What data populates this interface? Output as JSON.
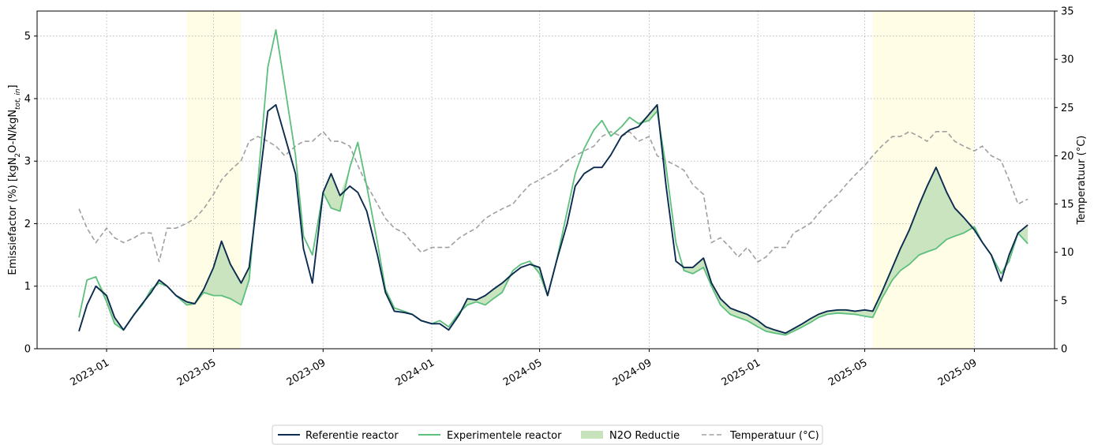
{
  "chart_data": {
    "type": "line",
    "ylabel_left_prefix": "Emissiefactor (%) [kgN",
    "ylabel_left_sub1": "2",
    "ylabel_left_mid": "O-N/kgN",
    "ylabel_left_sub2": "tot, in",
    "ylabel_left_suffix": "]",
    "ylabel_right": "Temperatuur (°C)",
    "ylim_left": [
      0,
      5.4
    ],
    "ylim_right": [
      0,
      35
    ],
    "yticks_left": [
      "0",
      "1",
      "2",
      "3",
      "4",
      "5"
    ],
    "yticks_right": [
      "0",
      "5",
      "10",
      "15",
      "20",
      "25",
      "30",
      "35"
    ],
    "xlim": [
      "2022-10-15",
      "2025-11-30"
    ],
    "xticks": [
      "2023-01",
      "2023-05",
      "2023-09",
      "2024-01",
      "2024-05",
      "2024-09",
      "2025-01",
      "2025-05",
      "2025-09"
    ],
    "grid": true,
    "legend_position": "bottom-center",
    "shaded_periods": [
      {
        "start": "2023-04-01",
        "end": "2023-06-01"
      },
      {
        "start": "2025-05-10",
        "end": "2025-09-01"
      }
    ],
    "colors": {
      "reference": "#0b2b4f",
      "experimental": "#5dbf7e",
      "reduction_fill": "#c6e3bc",
      "temperature": "#a0a0a0",
      "shade": "#fffde6"
    },
    "legend": [
      {
        "key": "reference",
        "label": "Referentie reactor"
      },
      {
        "key": "experimental",
        "label": "Experimentele reactor"
      },
      {
        "key": "reduction",
        "label": "N2O Reductie"
      },
      {
        "key": "temperature",
        "label": "Temperatuur (°C)"
      }
    ],
    "dates": [
      "2022-12-01",
      "2022-12-10",
      "2022-12-20",
      "2023-01-01",
      "2023-01-10",
      "2023-01-20",
      "2023-02-01",
      "2023-02-10",
      "2023-02-20",
      "2023-03-01",
      "2023-03-10",
      "2023-03-20",
      "2023-04-01",
      "2023-04-10",
      "2023-04-20",
      "2023-05-01",
      "2023-05-10",
      "2023-05-20",
      "2023-06-01",
      "2023-06-10",
      "2023-06-20",
      "2023-07-01",
      "2023-07-10",
      "2023-07-20",
      "2023-08-01",
      "2023-08-10",
      "2023-08-20",
      "2023-09-01",
      "2023-09-10",
      "2023-09-20",
      "2023-10-01",
      "2023-10-10",
      "2023-10-20",
      "2023-11-01",
      "2023-11-10",
      "2023-11-20",
      "2023-12-01",
      "2023-12-10",
      "2023-12-20",
      "2024-01-01",
      "2024-01-10",
      "2024-01-20",
      "2024-02-01",
      "2024-02-10",
      "2024-02-20",
      "2024-03-01",
      "2024-03-10",
      "2024-03-20",
      "2024-04-01",
      "2024-04-10",
      "2024-04-20",
      "2024-05-01",
      "2024-05-10",
      "2024-05-20",
      "2024-06-01",
      "2024-06-10",
      "2024-06-20",
      "2024-07-01",
      "2024-07-10",
      "2024-07-20",
      "2024-08-01",
      "2024-08-10",
      "2024-08-20",
      "2024-09-01",
      "2024-09-10",
      "2024-09-20",
      "2024-10-01",
      "2024-10-10",
      "2024-10-20",
      "2024-11-01",
      "2024-11-10",
      "2024-11-20",
      "2024-12-01",
      "2024-12-10",
      "2024-12-20",
      "2025-01-01",
      "2025-01-10",
      "2025-01-20",
      "2025-02-01",
      "2025-02-10",
      "2025-02-20",
      "2025-03-01",
      "2025-03-10",
      "2025-03-20",
      "2025-04-01",
      "2025-04-10",
      "2025-04-20",
      "2025-05-01",
      "2025-05-10",
      "2025-05-20",
      "2025-06-01",
      "2025-06-10",
      "2025-06-20",
      "2025-07-01",
      "2025-07-10",
      "2025-07-20",
      "2025-08-01",
      "2025-08-10",
      "2025-08-20",
      "2025-09-01",
      "2025-09-10",
      "2025-09-20",
      "2025-10-01",
      "2025-10-10",
      "2025-10-20",
      "2025-10-31"
    ],
    "series": [
      {
        "name": "Referentie reactor",
        "key": "reference",
        "values": [
          0.28,
          0.7,
          1.0,
          0.85,
          0.5,
          0.3,
          0.55,
          0.72,
          0.9,
          1.1,
          1.0,
          0.85,
          0.75,
          0.72,
          0.95,
          1.3,
          1.72,
          1.35,
          1.05,
          1.3,
          2.5,
          3.8,
          3.9,
          3.4,
          2.8,
          1.6,
          1.05,
          2.5,
          2.8,
          2.45,
          2.6,
          2.5,
          2.2,
          1.5,
          0.9,
          0.6,
          0.58,
          0.55,
          0.45,
          0.4,
          0.4,
          0.3,
          0.55,
          0.8,
          0.78,
          0.85,
          0.95,
          1.05,
          1.2,
          1.3,
          1.35,
          1.3,
          0.85,
          1.4,
          2.0,
          2.6,
          2.8,
          2.9,
          2.9,
          3.1,
          3.4,
          3.5,
          3.55,
          3.75,
          3.9,
          2.6,
          1.4,
          1.3,
          1.3,
          1.45,
          1.05,
          0.8,
          0.65,
          0.6,
          0.55,
          0.45,
          0.35,
          0.3,
          0.25,
          0.32,
          0.4,
          0.48,
          0.55,
          0.6,
          0.62,
          0.62,
          0.6,
          0.62,
          0.6,
          0.9,
          1.3,
          1.6,
          1.9,
          2.3,
          2.6,
          2.9,
          2.5,
          2.25,
          2.1,
          1.9,
          1.7,
          1.5,
          1.08,
          1.5,
          1.85,
          1.98
        ]
      },
      {
        "name": "Experimentele reactor",
        "key": "experimental",
        "values": [
          0.5,
          1.1,
          1.15,
          0.75,
          0.4,
          0.3,
          0.55,
          0.7,
          0.95,
          1.05,
          1.0,
          0.85,
          0.7,
          0.72,
          0.9,
          0.85,
          0.85,
          0.8,
          0.7,
          1.1,
          2.7,
          4.5,
          5.1,
          4.2,
          3.1,
          1.8,
          1.5,
          2.5,
          2.25,
          2.2,
          2.9,
          3.3,
          2.6,
          1.7,
          0.95,
          0.65,
          0.6,
          0.55,
          0.45,
          0.4,
          0.45,
          0.35,
          0.58,
          0.7,
          0.75,
          0.7,
          0.8,
          0.9,
          1.25,
          1.35,
          1.4,
          1.2,
          0.85,
          1.4,
          2.2,
          2.8,
          3.2,
          3.5,
          3.65,
          3.4,
          3.55,
          3.7,
          3.6,
          3.65,
          3.8,
          2.9,
          1.7,
          1.25,
          1.2,
          1.3,
          1.0,
          0.7,
          0.55,
          0.5,
          0.45,
          0.35,
          0.28,
          0.25,
          0.22,
          0.28,
          0.35,
          0.42,
          0.5,
          0.55,
          0.57,
          0.56,
          0.55,
          0.52,
          0.5,
          0.8,
          1.1,
          1.25,
          1.35,
          1.5,
          1.55,
          1.6,
          1.75,
          1.8,
          1.85,
          1.95,
          1.7,
          1.5,
          1.2,
          1.4,
          1.85,
          1.68
        ]
      },
      {
        "name": "Temperatuur (°C)",
        "key": "temperature",
        "axis": "right",
        "values": [
          14.5,
          12.5,
          11.0,
          12.5,
          11.5,
          11.0,
          11.5,
          12.0,
          12.0,
          9.0,
          12.5,
          12.5,
          13.0,
          13.5,
          14.5,
          16.0,
          17.5,
          18.5,
          19.5,
          21.5,
          22.0,
          21.5,
          21.0,
          20.0,
          21.0,
          21.5,
          21.5,
          22.5,
          21.5,
          21.5,
          21.0,
          19.0,
          17.0,
          15.0,
          13.5,
          12.5,
          12.0,
          11.0,
          10.0,
          10.5,
          10.5,
          10.5,
          11.5,
          12.0,
          12.5,
          13.5,
          14.0,
          14.5,
          15.0,
          16.0,
          17.0,
          17.5,
          18.0,
          18.5,
          19.5,
          20.0,
          20.5,
          21.0,
          22.0,
          22.5,
          22.0,
          22.5,
          21.5,
          22.0,
          20.0,
          19.5,
          19.0,
          18.5,
          17.0,
          16.0,
          11.0,
          11.5,
          10.5,
          9.5,
          10.5,
          9.0,
          9.5,
          10.5,
          10.5,
          12.0,
          12.5,
          13.0,
          14.0,
          15.0,
          16.0,
          17.0,
          18.0,
          19.0,
          20.0,
          21.0,
          22.0,
          22.0,
          22.5,
          22.0,
          21.5,
          22.5,
          22.5,
          21.5,
          21.0,
          20.5,
          21.0,
          20.0,
          19.5,
          17.5,
          15.0,
          15.5
        ]
      }
    ]
  }
}
